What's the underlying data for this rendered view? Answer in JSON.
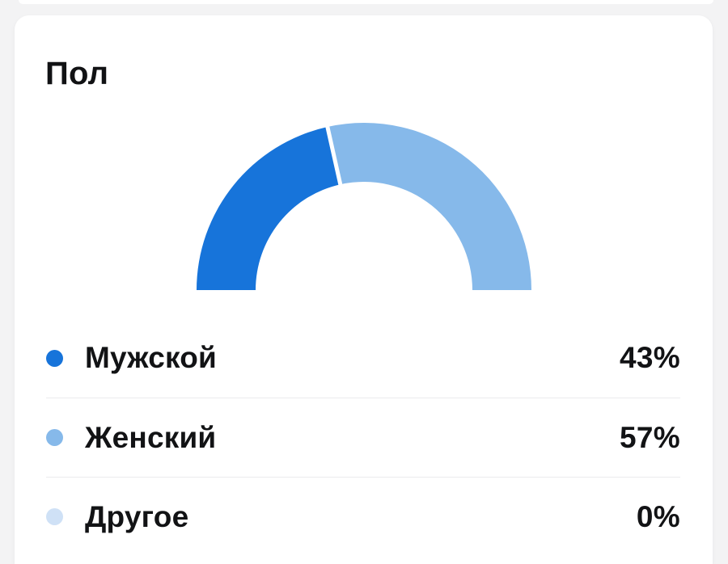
{
  "page": {
    "background_color": "#f3f3f4",
    "card_color": "#ffffff"
  },
  "card": {
    "title": "Пол"
  },
  "chart_data": {
    "type": "pie",
    "variant": "half-donut-gauge",
    "title": "Пол",
    "categories": [
      "Мужской",
      "Женский",
      "Другое"
    ],
    "values": [
      43,
      57,
      0
    ],
    "unit": "%",
    "colors": [
      "#1774da",
      "#86b9ea",
      "#cfe1f6"
    ],
    "divider_color": "#ffffff",
    "legend_position": "bottom-list"
  },
  "legend": {
    "items": [
      {
        "label": "Мужской",
        "value": "43%"
      },
      {
        "label": "Женский",
        "value": "57%"
      },
      {
        "label": "Другое",
        "value": "0%"
      }
    ]
  }
}
